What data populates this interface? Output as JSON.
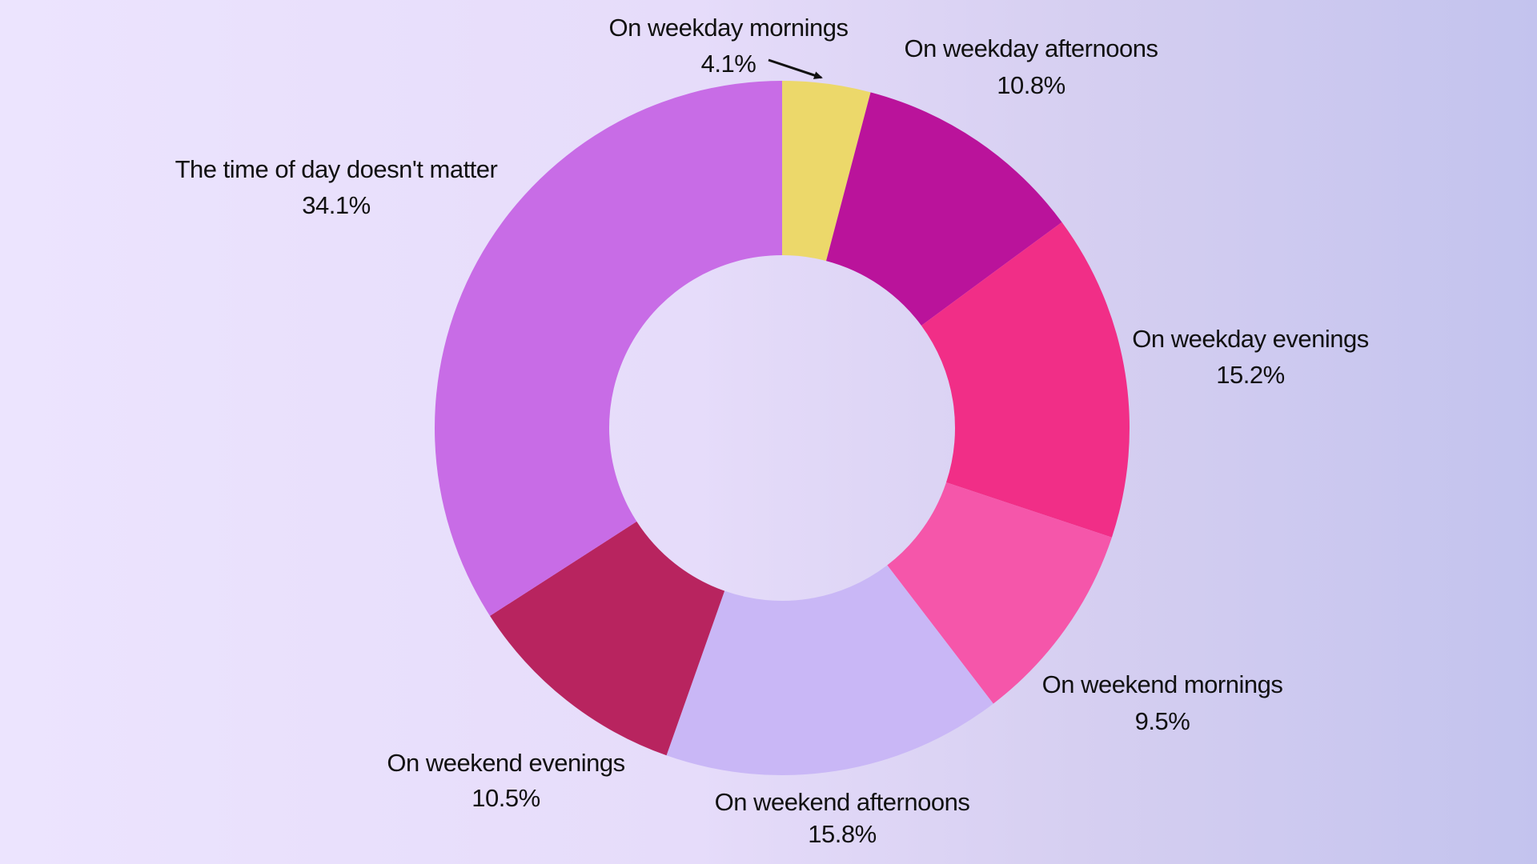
{
  "chart_data": {
    "type": "pie",
    "variant": "donut",
    "slices": [
      {
        "label": "On weekday mornings",
        "value": 4.1,
        "value_label": "4.1%",
        "color": "#ecd86a"
      },
      {
        "label": "On weekday afternoons",
        "value": 10.8,
        "value_label": "10.8%",
        "color": "#ba139b"
      },
      {
        "label": "On weekday evenings",
        "value": 15.2,
        "value_label": "15.2%",
        "color": "#f12e87"
      },
      {
        "label": "On weekend mornings",
        "value": 9.5,
        "value_label": "9.5%",
        "color": "#f556aa"
      },
      {
        "label": "On weekend afternoons",
        "value": 15.8,
        "value_label": "15.8%",
        "color": "#c9b7f6"
      },
      {
        "label": "On weekend evenings",
        "value": 10.5,
        "value_label": "10.5%",
        "color": "#b8245f"
      },
      {
        "label": "The time of day doesn't matter",
        "value": 34.1,
        "value_label": "34.1%",
        "color": "#c86ce6"
      }
    ],
    "start_angle": "12 o'clock",
    "direction": "clockwise",
    "legend": "none",
    "labels": "outside"
  }
}
